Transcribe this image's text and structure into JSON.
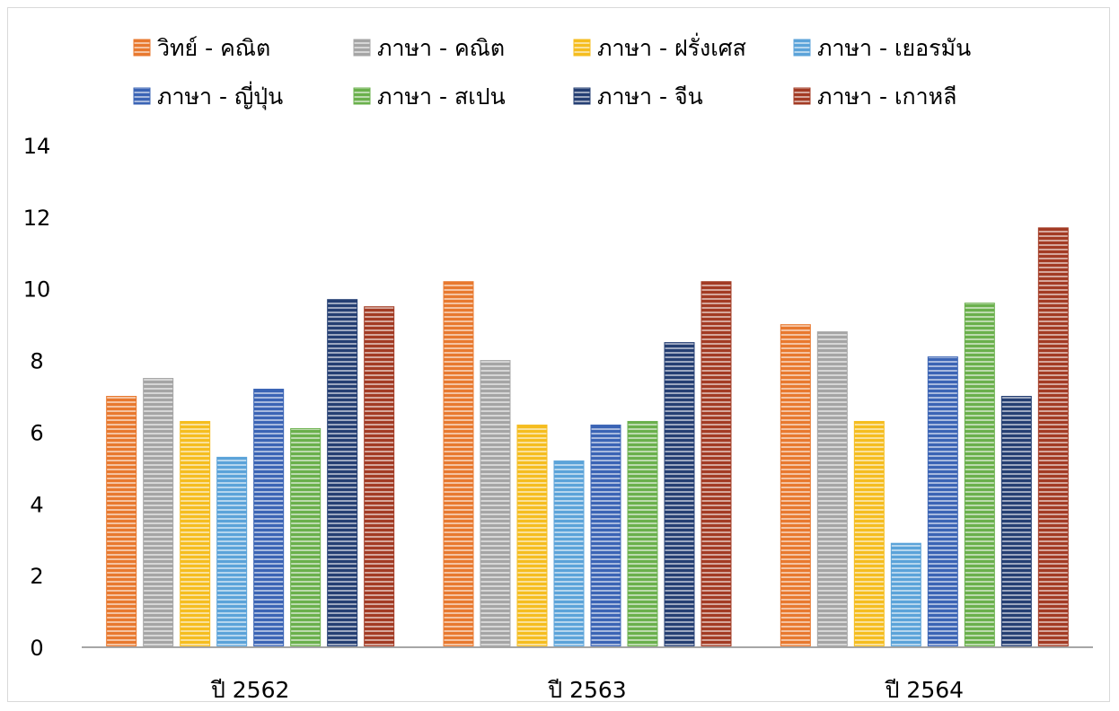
{
  "chart_data": {
    "type": "bar",
    "categories": [
      "ปี 2562",
      "ปี 2563",
      "ปี 2564"
    ],
    "series": [
      {
        "name": "วิทย์ - คณิต",
        "values": [
          7.0,
          10.2,
          9.0
        ],
        "color": "#e8792f"
      },
      {
        "name": "ภาษา - คณิต",
        "values": [
          7.5,
          8.0,
          8.8
        ],
        "color": "#a5a5a5"
      },
      {
        "name": "ภาษา - ฝรั่งเศส",
        "values": [
          6.3,
          6.2,
          6.3
        ],
        "color": "#f5bd1f"
      },
      {
        "name": "ภาษา - เยอรมัน",
        "values": [
          5.3,
          5.2,
          2.9
        ],
        "color": "#5ba3d9"
      },
      {
        "name": "ภาษา - ญี่ปุ่น",
        "values": [
          7.2,
          6.2,
          8.1
        ],
        "color": "#3b64b5"
      },
      {
        "name": "ภาษา - สเปน",
        "values": [
          6.1,
          6.3,
          9.6
        ],
        "color": "#6ab04c"
      },
      {
        "name": "ภาษา - จีน",
        "values": [
          9.7,
          8.5,
          7.0
        ],
        "color": "#253f73"
      },
      {
        "name": "ภาษา - เกาหลี",
        "values": [
          9.5,
          10.2,
          11.7
        ],
        "color": "#a33b24"
      }
    ],
    "ylim": [
      0,
      14
    ],
    "yticks": [
      0,
      2,
      4,
      6,
      8,
      10,
      12,
      14
    ],
    "legend": "top",
    "grid": false,
    "title": "",
    "xlabel": "",
    "ylabel": ""
  }
}
